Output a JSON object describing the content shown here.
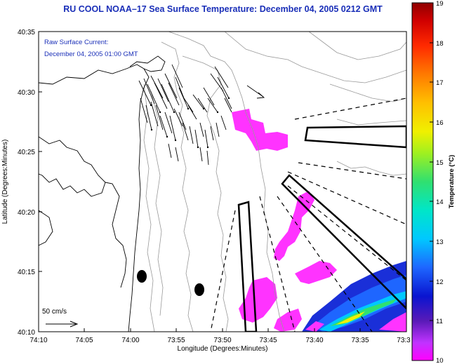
{
  "title": "RU COOL  NOAA–17  Sea Surface Temperature:  December 04, 2005 0212 GMT",
  "annotation": {
    "line1": "Raw Surface Current:",
    "line2": "December 04, 2005 01:00 GMT"
  },
  "scale_label": "50 cm/s",
  "x_axis": {
    "label": "Longitude (Degrees:Minutes)",
    "ticks": [
      "74:10",
      "74:05",
      "74:00",
      "73:55",
      "73:50",
      "73:45",
      "73:40",
      "73:35",
      "73:3"
    ]
  },
  "y_axis": {
    "label": "Latitude (Degrees:Minutes)",
    "ticks": [
      "40:35",
      "40:30",
      "40:25",
      "40:20",
      "40:15",
      "40:10"
    ]
  },
  "colorbar": {
    "label": "Temperature (°C)",
    "ticks": [
      "19",
      "18",
      "17",
      "16",
      "15",
      "14",
      "13",
      "12",
      "11",
      "10"
    ]
  },
  "colors": {
    "title": "#1a2fb8",
    "sst_warm_patch": "#ff33ff",
    "sst_cold": "#1a2fd8",
    "coastline": "#000000",
    "bathymetry": "#999999"
  }
}
